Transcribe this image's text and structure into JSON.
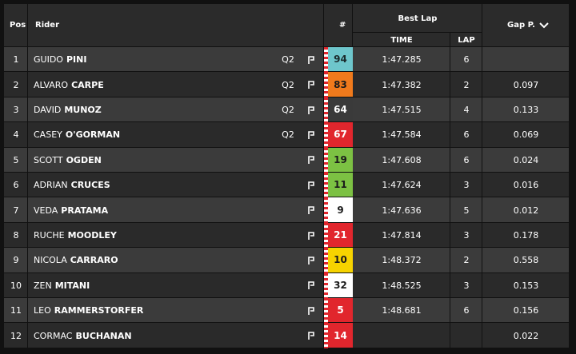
{
  "header": {
    "pos": "Pos",
    "rider": "Rider",
    "number": "#",
    "best_lap": "Best Lap",
    "time": "TIME",
    "lap": "LAP",
    "gap": "Gap P."
  },
  "table": {
    "rows": [
      {
        "pos": 1,
        "first": "GUIDO",
        "last": "PINI",
        "q2": "Q2",
        "number": 94,
        "number_color": "#6ec6cc",
        "number_text": "#1b2a2c",
        "time": "1:47.285",
        "lap": 6
      },
      {
        "pos": 2,
        "first": "ALVARO",
        "last": "CARPE",
        "q2": "Q2",
        "number": 83,
        "number_color": "#f07a1c",
        "number_text": "#1b1b1b",
        "time": "1:47.382",
        "lap": 2,
        "gap": "0.097"
      },
      {
        "pos": 3,
        "first": "DAVID",
        "last": "MUNOZ",
        "q2": "Q2",
        "number": 64,
        "number_color": "#3a3a3a",
        "number_text": "#ffffff",
        "time": "1:47.515",
        "lap": 4,
        "gap": "0.133"
      },
      {
        "pos": 4,
        "first": "CASEY",
        "last": "O'GORMAN",
        "q2": "Q2",
        "number": 67,
        "number_color": "#e1262d",
        "number_text": "#ffffff",
        "time": "1:47.584",
        "lap": 6,
        "gap": "0.069"
      },
      {
        "pos": 5,
        "first": "SCOTT",
        "last": "OGDEN",
        "number": 19,
        "number_color": "#7cc143",
        "number_text": "#1b1b1b",
        "time": "1:47.608",
        "lap": 6,
        "gap": "0.024"
      },
      {
        "pos": 6,
        "first": "ADRIAN",
        "last": "CRUCES",
        "number": 11,
        "number_color": "#7cc143",
        "number_text": "#1b1b1b",
        "time": "1:47.624",
        "lap": 3,
        "gap": "0.016"
      },
      {
        "pos": 7,
        "first": "VEDA",
        "last": "PRATAMA",
        "number": 9,
        "number_color": "#ffffff",
        "number_text": "#1b1b1b",
        "time": "1:47.636",
        "lap": 5,
        "gap": "0.012"
      },
      {
        "pos": 8,
        "first": "RUCHE",
        "last": "MOODLEY",
        "number": 21,
        "number_color": "#e1262d",
        "number_text": "#ffffff",
        "time": "1:47.814",
        "lap": 3,
        "gap": "0.178"
      },
      {
        "pos": 9,
        "first": "NICOLA",
        "last": "CARRARO",
        "number": 10,
        "number_color": "#f6d300",
        "number_text": "#1b1b1b",
        "time": "1:48.372",
        "lap": 2,
        "gap": "0.558"
      },
      {
        "pos": 10,
        "first": "ZEN",
        "last": "MITANI",
        "number": 32,
        "number_color": "#ffffff",
        "number_text": "#1b1b1b",
        "time": "1:48.525",
        "lap": 3,
        "gap": "0.153"
      },
      {
        "pos": 11,
        "first": "LEO",
        "last": "RAMMERSTORFER",
        "number": 5,
        "number_color": "#e1262d",
        "number_text": "#ffffff",
        "time": "1:48.681",
        "lap": 6,
        "gap": "0.156"
      },
      {
        "pos": 12,
        "first": "CORMAC",
        "last": "BUCHANAN",
        "number": 14,
        "number_color": "#e1262d",
        "number_text": "#ffffff",
        "gap": "0.022"
      }
    ]
  }
}
